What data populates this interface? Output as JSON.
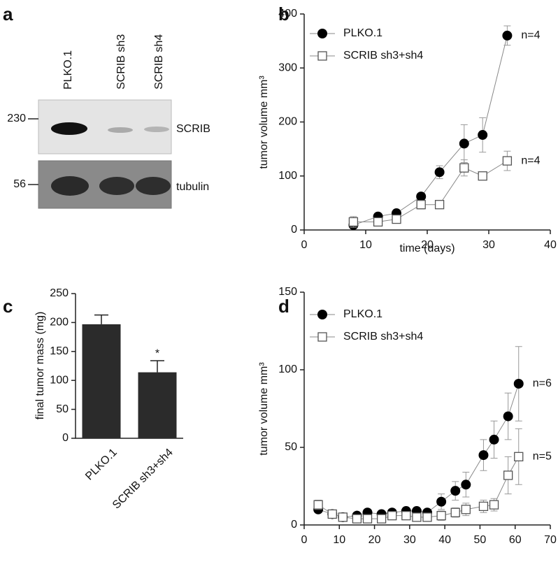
{
  "chart_data": [
    {
      "type": "blot",
      "panel": "a",
      "lanes": [
        "PLKO.1",
        "SCRIB sh3",
        "SCRIB sh4"
      ],
      "markers": [
        230,
        56
      ],
      "rows": [
        "SCRIB",
        "tubulin"
      ]
    },
    {
      "type": "line",
      "panel": "b",
      "xlabel": "time (days)",
      "ylabel": "tumor volume mm³",
      "x": [
        8,
        12,
        15,
        19,
        22,
        26,
        29,
        33
      ],
      "xlim": [
        0,
        40
      ],
      "xticks": [
        0,
        10,
        20,
        30,
        40
      ],
      "ylim": [
        0,
        400
      ],
      "yticks": [
        0,
        100,
        200,
        300,
        400
      ],
      "series": [
        {
          "name": "PLKO.1",
          "color": "#000000",
          "marker": "circle",
          "annotation": "n=4",
          "values": [
            9,
            25,
            31,
            62,
            107,
            160,
            176,
            360
          ],
          "errors": [
            4,
            5,
            5,
            6,
            12,
            35,
            32,
            18
          ]
        },
        {
          "name": "SCRIB sh3+sh4",
          "color": "#555555",
          "marker": "square",
          "annotation": "n=4",
          "values": [
            15,
            15,
            20,
            47,
            47,
            115,
            100,
            128
          ],
          "errors": [
            10,
            4,
            5,
            8,
            5,
            15,
            5,
            18
          ]
        }
      ]
    },
    {
      "type": "bar",
      "panel": "c",
      "ylabel": "final tumor mass (mg)",
      "categories": [
        "PLKO.1",
        "SCRIB sh3+sh4"
      ],
      "values": [
        197,
        114
      ],
      "errors": [
        16,
        20
      ],
      "significance": [
        null,
        "*"
      ],
      "color": "#2b2b2b",
      "ylim": [
        0,
        250
      ],
      "yticks": [
        0,
        50,
        100,
        150,
        200,
        250
      ]
    },
    {
      "type": "line",
      "panel": "d",
      "ylabel": "tumor volume mm³",
      "x": [
        4,
        8,
        11,
        15,
        18,
        22,
        25,
        29,
        32,
        35,
        39,
        43,
        46,
        51,
        54,
        58,
        61
      ],
      "xlim": [
        0,
        70
      ],
      "xticks": [
        0,
        10,
        20,
        30,
        40,
        50,
        60,
        70
      ],
      "ylim": [
        0,
        150
      ],
      "yticks": [
        0,
        50,
        100,
        150
      ],
      "series": [
        {
          "name": "PLKO.1",
          "color": "#000000",
          "marker": "circle",
          "annotation": "n=6",
          "values": [
            10,
            7,
            5,
            6,
            8,
            7,
            8,
            9,
            9,
            8,
            15,
            22,
            26,
            45,
            55,
            70,
            91
          ],
          "errors": [
            2,
            2,
            2,
            2,
            2,
            2,
            2,
            2,
            2,
            2,
            5,
            6,
            8,
            10,
            12,
            15,
            24
          ]
        },
        {
          "name": "SCRIB sh3+sh4",
          "color": "#555555",
          "marker": "square",
          "annotation": "n=5",
          "values": [
            13,
            7,
            5,
            4,
            4,
            4,
            6,
            6,
            5,
            5,
            6,
            8,
            10,
            12,
            13,
            32,
            44
          ],
          "errors": [
            3,
            2,
            2,
            2,
            2,
            2,
            2,
            2,
            2,
            2,
            3,
            3,
            4,
            4,
            4,
            12,
            18
          ]
        }
      ]
    }
  ]
}
